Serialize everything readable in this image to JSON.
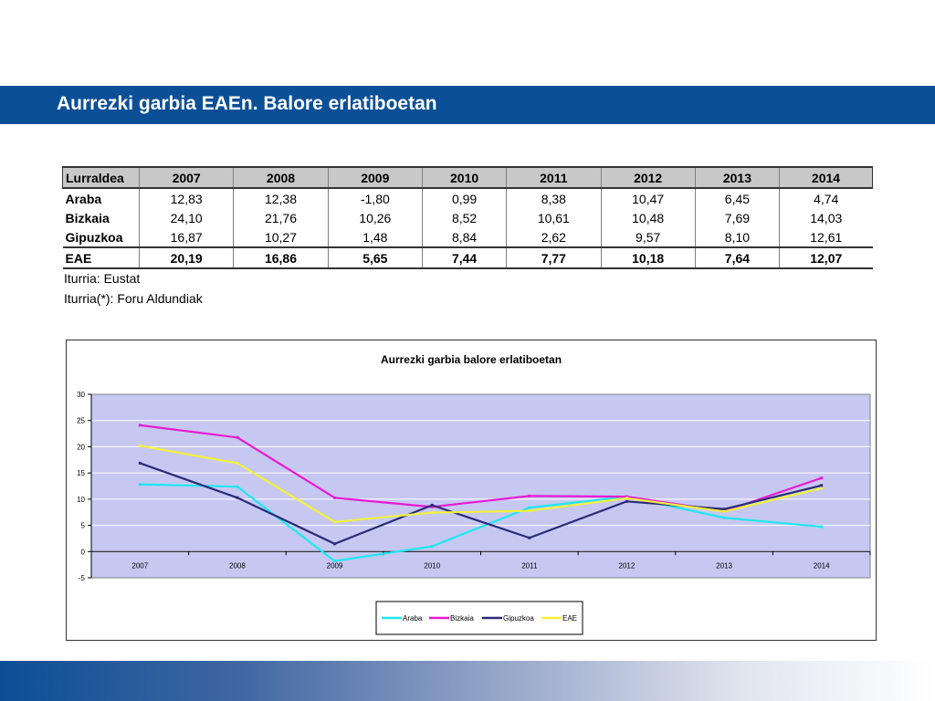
{
  "header": {
    "title": "Aurrezki garbia EAEn. Balore erlatiboetan"
  },
  "table": {
    "columns": [
      "Lurraldea",
      "2007",
      "2008",
      "2009",
      "2010",
      "2011",
      "2012",
      "2013",
      "2014"
    ],
    "rows": [
      [
        "Araba",
        "12,83",
        "12,38",
        "-1,80",
        "0,99",
        "8,38",
        "10,47",
        "6,45",
        "4,74"
      ],
      [
        "Bizkaia",
        "24,10",
        "21,76",
        "10,26",
        "8,52",
        "10,61",
        "10,48",
        "7,69",
        "14,03"
      ],
      [
        "Gipuzkoa",
        "16,87",
        "10,27",
        "1,48",
        "8,84",
        "2,62",
        "9,57",
        "8,10",
        "12,61"
      ]
    ],
    "total": [
      "EAE",
      "20,19",
      "16,86",
      "5,65",
      "7,44",
      "7,77",
      "10,18",
      "7,64",
      "12,07"
    ]
  },
  "sources": [
    "Iturria: Eustat",
    "Iturria(*): Foru Aldundiak"
  ],
  "chart_data": {
    "type": "line",
    "title": "Aurrezki garbia balore erlatiboetan",
    "xlabel": "",
    "ylabel": "",
    "categories": [
      "2007",
      "2008",
      "2009",
      "2010",
      "2011",
      "2012",
      "2013",
      "2014"
    ],
    "ylim": [
      -5,
      30
    ],
    "yticks": [
      -5,
      0,
      5,
      10,
      15,
      20,
      25,
      30
    ],
    "grid": true,
    "legend_position": "bottom",
    "plot_background": "#c6c8f2",
    "series": [
      {
        "name": "Araba",
        "color": "#1de7f0",
        "values": [
          12.83,
          12.38,
          -1.8,
          0.99,
          8.38,
          10.47,
          6.45,
          4.74
        ]
      },
      {
        "name": "Bizkaia",
        "color": "#e81ad2",
        "values": [
          24.1,
          21.76,
          10.26,
          8.52,
          10.61,
          10.48,
          7.69,
          14.03
        ]
      },
      {
        "name": "Gipuzkoa",
        "color": "#2b2b7a",
        "values": [
          16.87,
          10.27,
          1.48,
          8.84,
          2.62,
          9.57,
          8.1,
          12.61
        ]
      },
      {
        "name": "EAE",
        "color": "#f2f23a",
        "values": [
          20.19,
          16.86,
          5.65,
          7.44,
          7.77,
          10.18,
          7.64,
          12.07
        ]
      }
    ]
  }
}
